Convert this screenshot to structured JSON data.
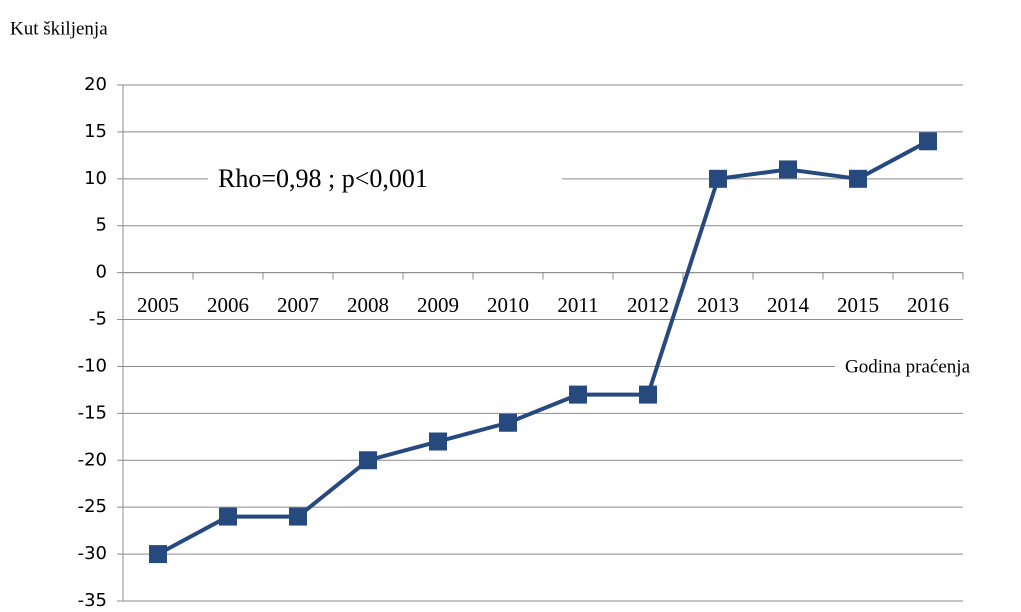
{
  "chart_data": {
    "type": "line",
    "title": "Kut škiljenja",
    "x_label": "Godina praćenja",
    "annotation": "Rho=0,98 ; p<0,001",
    "categories": [
      "2005",
      "2006",
      "2007",
      "2008",
      "2009",
      "2010",
      "2011",
      "2012",
      "2013",
      "2014",
      "2015",
      "2016"
    ],
    "series": [
      {
        "name": "Kut škiljenja",
        "color": "#264a7e",
        "values": [
          -30,
          -26,
          -26,
          -20,
          -18,
          -16,
          -13,
          -13,
          10,
          11,
          10,
          14
        ]
      }
    ],
    "ylim": [
      -35,
      20
    ],
    "yticks": [
      -35,
      -30,
      -25,
      -20,
      -15,
      -10,
      -5,
      0,
      5,
      10,
      15,
      20
    ],
    "grid": true,
    "legend": false
  }
}
